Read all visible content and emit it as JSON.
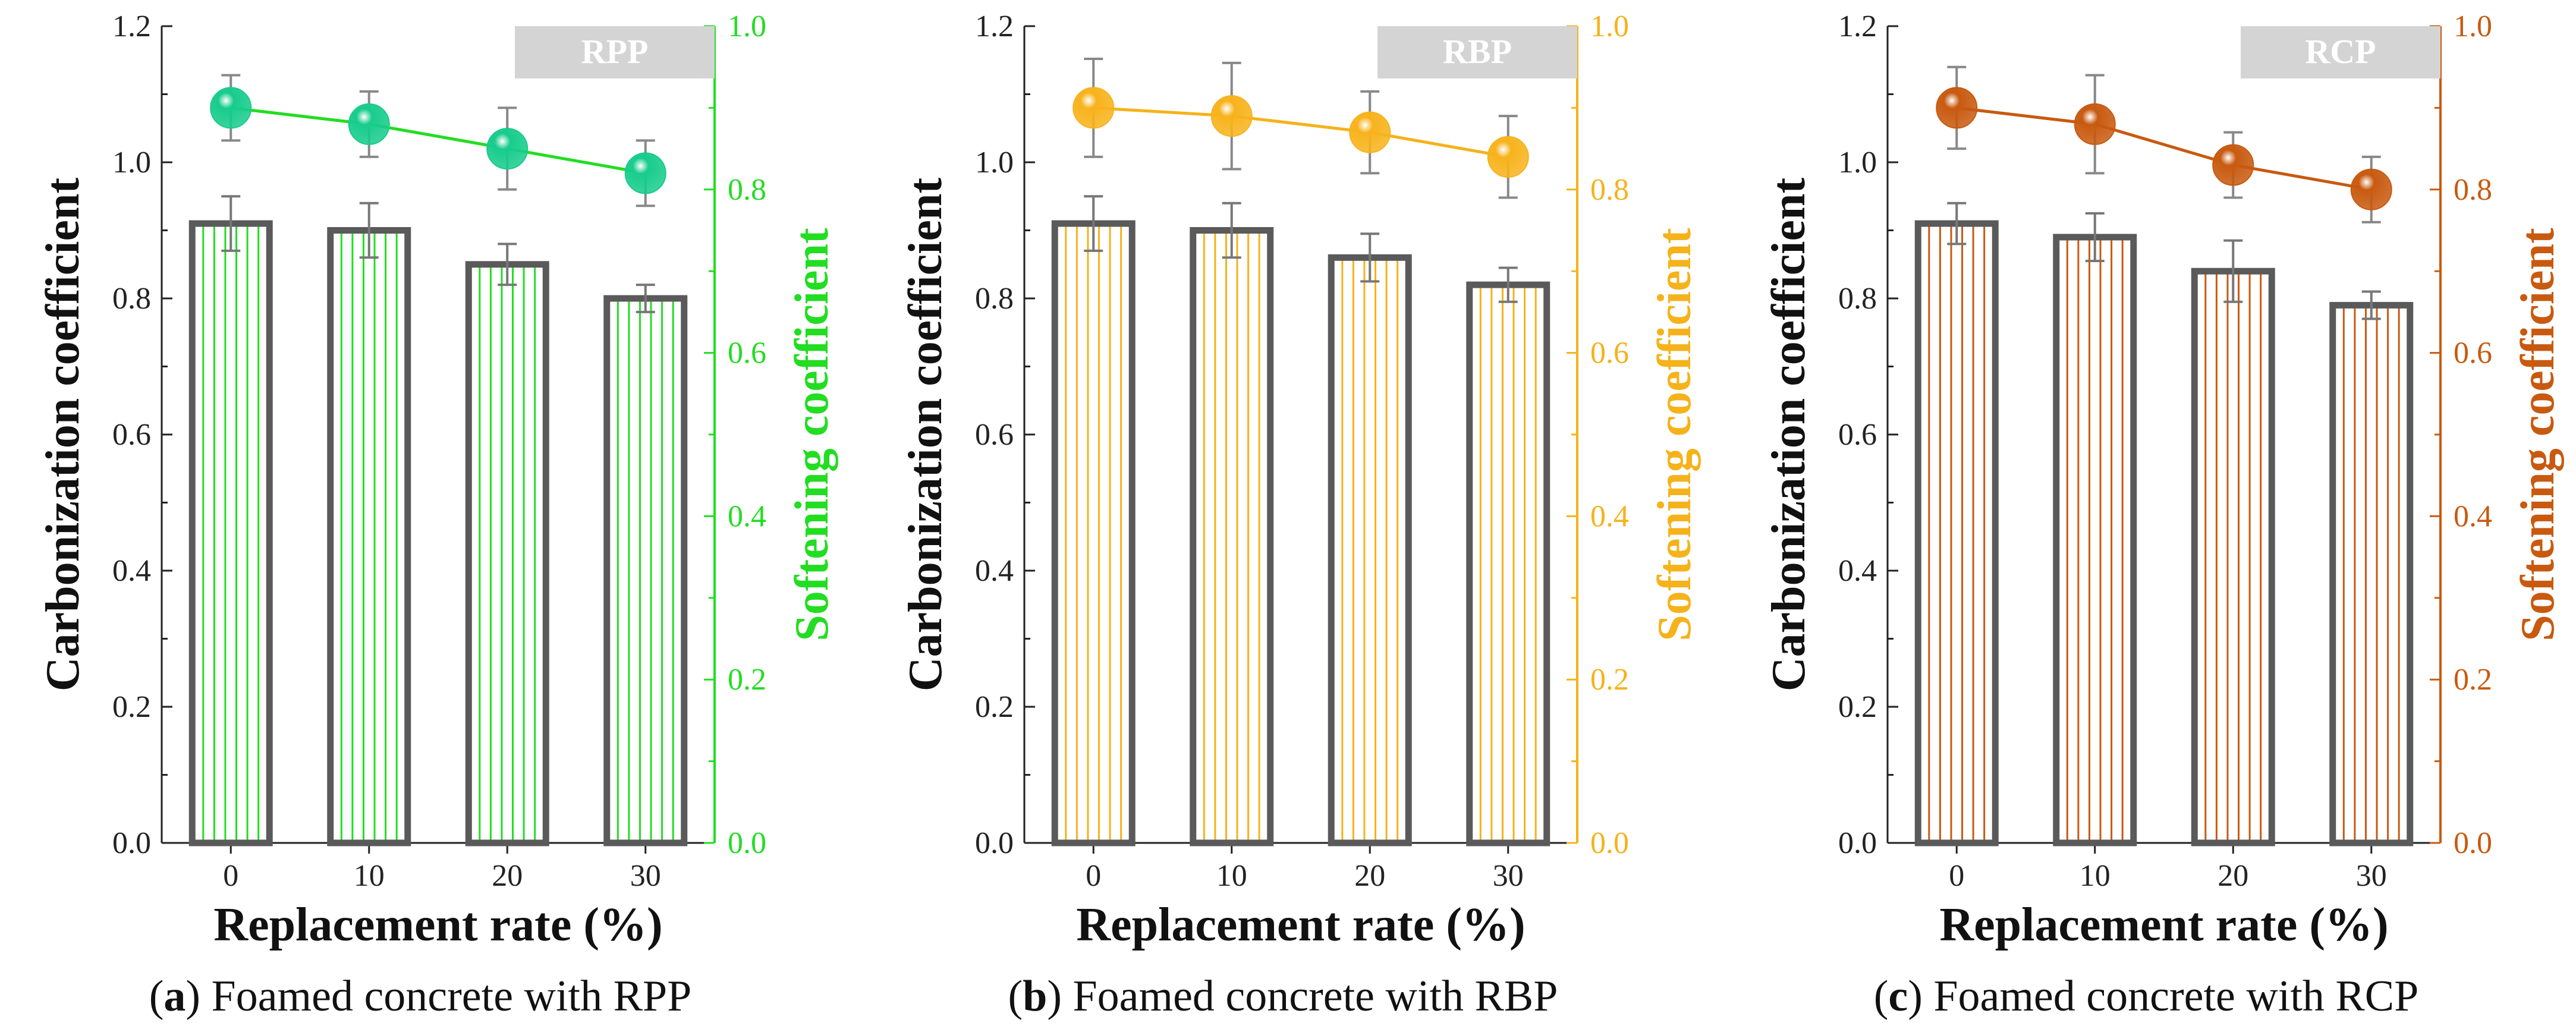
{
  "chart_data": [
    {
      "type": "bar",
      "panel_label": "a",
      "caption": "Foamed concrete with RPP",
      "tag": "RPP",
      "color": "#22dd22",
      "marker_color": "#17cc8c",
      "xlabel": "Replacement rate (%)",
      "ylabel": "Carbonization coefficient",
      "y2label": "Softening coefficient",
      "categories": [
        "0",
        "10",
        "20",
        "30"
      ],
      "ylim": [
        0,
        1.2
      ],
      "y2lim": [
        0,
        1.0
      ],
      "yticks": [
        "0.0",
        "0.2",
        "0.4",
        "0.6",
        "0.8",
        "1.0",
        "1.2"
      ],
      "y2ticks": [
        "0.0",
        "0.2",
        "0.4",
        "0.6",
        "0.8",
        "1.0"
      ],
      "series": [
        {
          "name": "Carbonization coefficient",
          "kind": "bar",
          "axis": "left",
          "values": [
            0.91,
            0.9,
            0.85,
            0.8
          ],
          "errors": [
            0.04,
            0.04,
            0.03,
            0.02
          ]
        },
        {
          "name": "Softening coefficient",
          "kind": "line",
          "axis": "right",
          "values": [
            0.9,
            0.88,
            0.85,
            0.82
          ],
          "errors": [
            0.04,
            0.04,
            0.05,
            0.04
          ]
        }
      ]
    },
    {
      "type": "bar",
      "panel_label": "b",
      "caption": "Foamed concrete with RBP",
      "tag": "RBP",
      "color": "#f5b21a",
      "marker_color": "#f8b31c",
      "xlabel": "Replacement rate (%)",
      "ylabel": "Carbonization coefficient",
      "y2label": "Softening coefficient",
      "categories": [
        "0",
        "10",
        "20",
        "30"
      ],
      "ylim": [
        0,
        1.2
      ],
      "y2lim": [
        0,
        1.0
      ],
      "yticks": [
        "0.0",
        "0.2",
        "0.4",
        "0.6",
        "0.8",
        "1.0",
        "1.2"
      ],
      "y2ticks": [
        "0.0",
        "0.2",
        "0.4",
        "0.6",
        "0.8",
        "1.0"
      ],
      "series": [
        {
          "name": "Carbonization coefficient",
          "kind": "bar",
          "axis": "left",
          "values": [
            0.91,
            0.9,
            0.86,
            0.82
          ],
          "errors": [
            0.04,
            0.04,
            0.035,
            0.025
          ]
        },
        {
          "name": "Softening coefficient",
          "kind": "line",
          "axis": "right",
          "values": [
            0.9,
            0.89,
            0.87,
            0.84
          ],
          "errors": [
            0.06,
            0.065,
            0.05,
            0.05
          ]
        }
      ]
    },
    {
      "type": "bar",
      "panel_label": "c",
      "caption": "Foamed concrete with RCP",
      "tag": "RCP",
      "color": "#c85a10",
      "marker_color": "#c85a10",
      "xlabel": "Replacement rate (%)",
      "ylabel": "Carbonization coefficient",
      "y2label": "Softening coefficient",
      "categories": [
        "0",
        "10",
        "20",
        "30"
      ],
      "ylim": [
        0,
        1.2
      ],
      "y2lim": [
        0,
        1.0
      ],
      "yticks": [
        "0.0",
        "0.2",
        "0.4",
        "0.6",
        "0.8",
        "1.0",
        "1.2"
      ],
      "y2ticks": [
        "0.0",
        "0.2",
        "0.4",
        "0.6",
        "0.8",
        "1.0"
      ],
      "series": [
        {
          "name": "Carbonization coefficient",
          "kind": "bar",
          "axis": "left",
          "values": [
            0.91,
            0.89,
            0.84,
            0.79
          ],
          "errors": [
            0.03,
            0.035,
            0.045,
            0.02
          ]
        },
        {
          "name": "Softening coefficient",
          "kind": "line",
          "axis": "right",
          "values": [
            0.9,
            0.88,
            0.83,
            0.8
          ],
          "errors": [
            0.05,
            0.06,
            0.04,
            0.04
          ]
        }
      ]
    }
  ]
}
